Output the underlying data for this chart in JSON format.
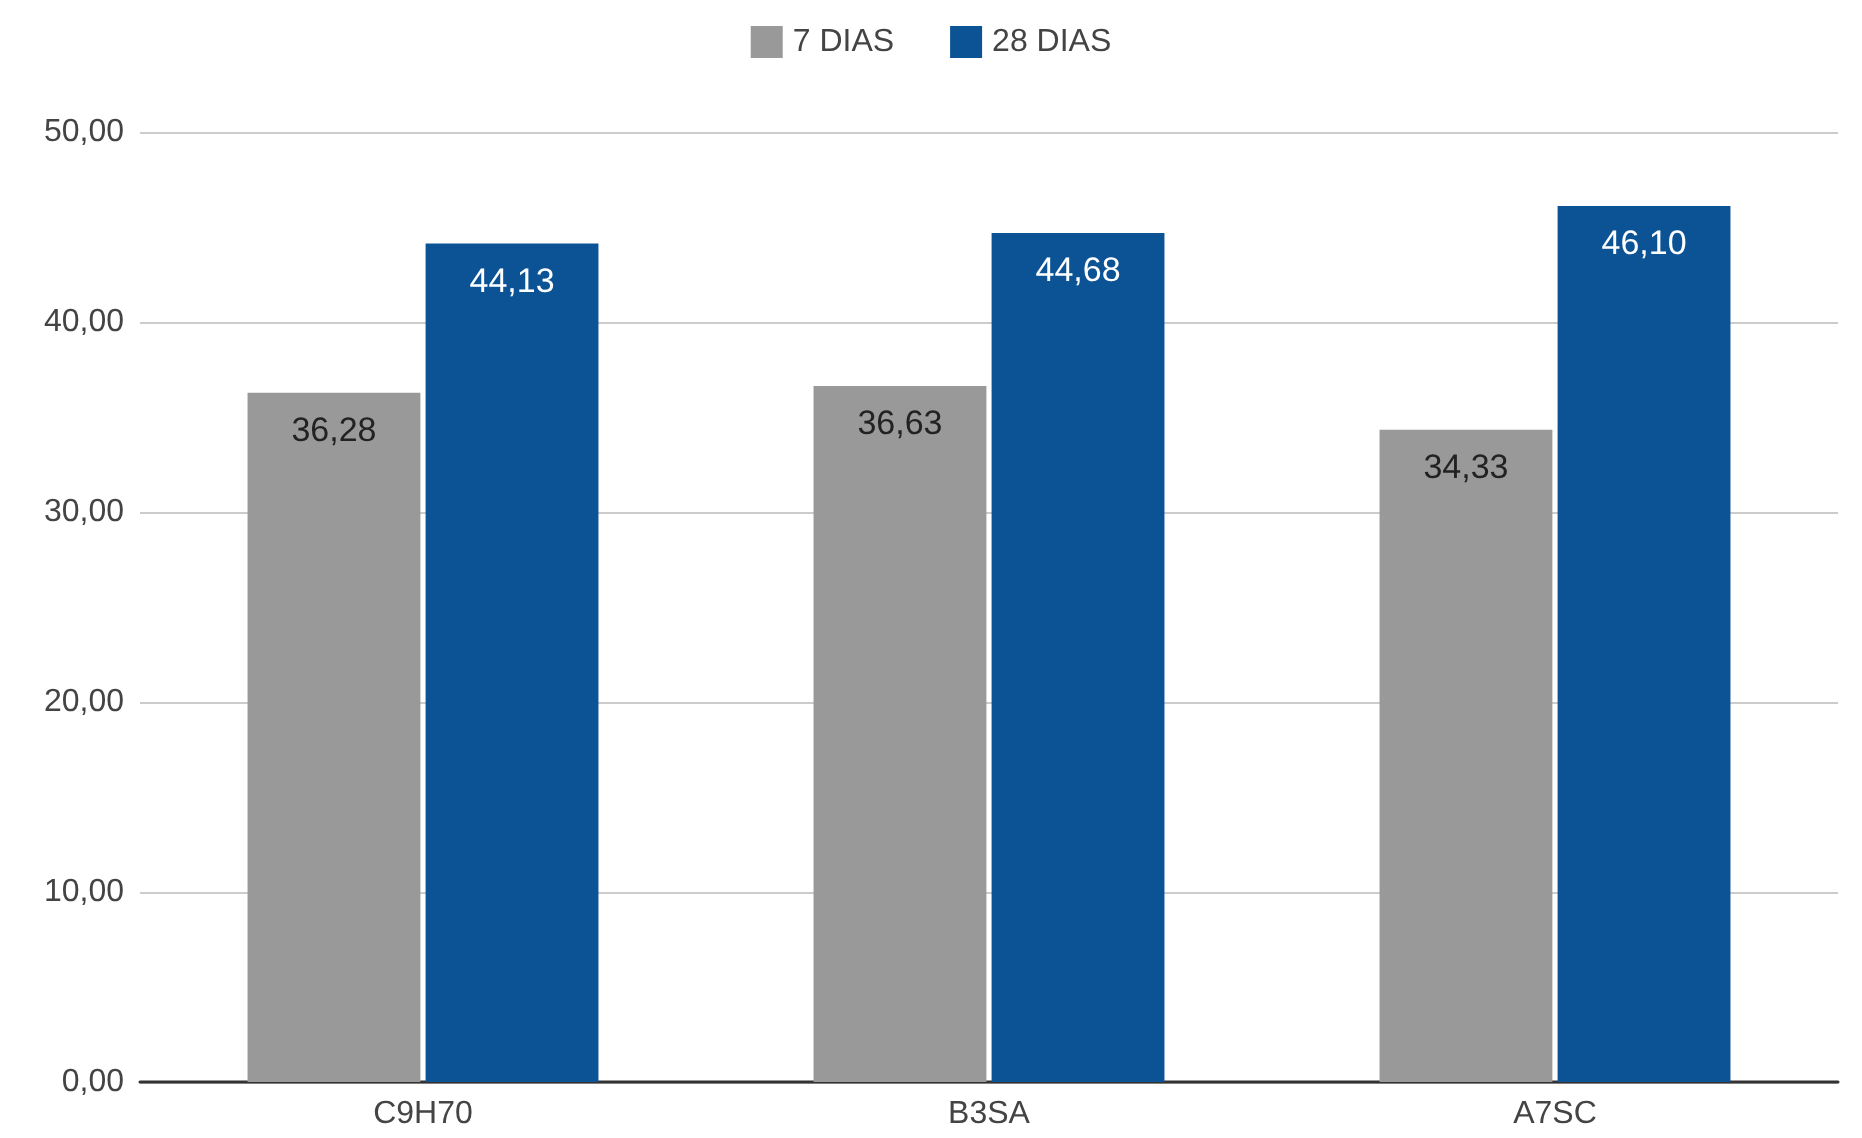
{
  "chart_data": {
    "type": "bar",
    "categories": [
      "C9H70",
      "B3SA",
      "A7SC"
    ],
    "series": [
      {
        "name": "7 DIAS",
        "color": "#999999",
        "values": [
          36.28,
          36.63,
          34.33
        ],
        "value_labels": [
          "36,28",
          "36,63",
          "34,33"
        ]
      },
      {
        "name": "28 DIAS",
        "color": "#0b5394",
        "values": [
          44.13,
          44.68,
          46.1
        ],
        "value_labels": [
          "44,13",
          "44,68",
          "46,10"
        ]
      }
    ],
    "ylim": [
      0,
      50
    ],
    "yticks": [
      {
        "value": 0,
        "label": "0,00"
      },
      {
        "value": 10,
        "label": "10,00"
      },
      {
        "value": 20,
        "label": "20,00"
      },
      {
        "value": 30,
        "label": "30,00"
      },
      {
        "value": 40,
        "label": "40,00"
      },
      {
        "value": 50,
        "label": "50,00"
      }
    ],
    "grid": "y",
    "legend": "top"
  }
}
